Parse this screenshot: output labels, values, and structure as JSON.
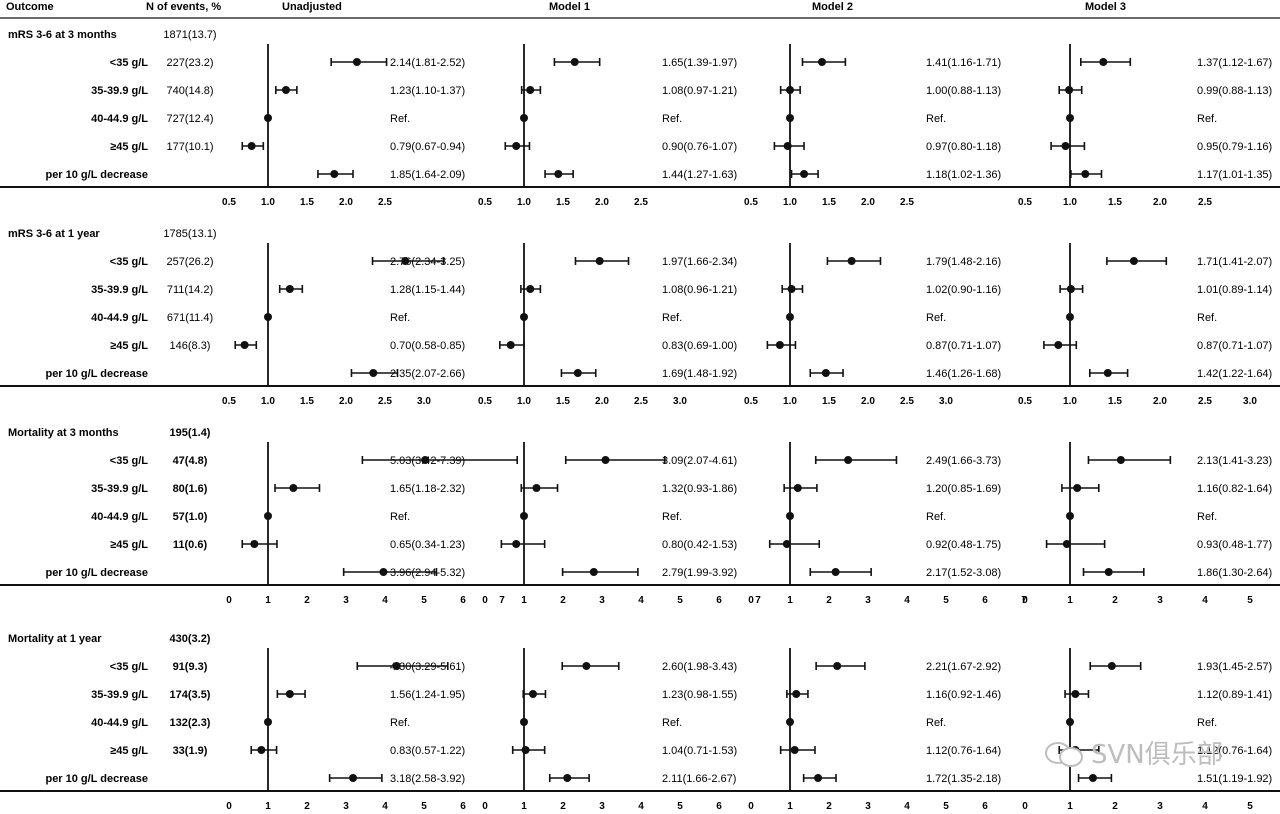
{
  "headers": {
    "outcome": "Outcome",
    "events": "N of events, %",
    "models": [
      "Unadjusted",
      "Model 1",
      "Model 2",
      "Model 3"
    ]
  },
  "ref_label": "Ref.",
  "watermark": "SVN俱乐部",
  "watermark_icon": "wechat-logo-icon",
  "chart_data": {
    "type": "forest",
    "reference_line": 1.0,
    "blocks": [
      {
        "title": "mRS 3-6 at 3 months",
        "total": "1871(13.7)",
        "bold_counts": false,
        "axis": {
          "min": 0.5,
          "max": 2.5,
          "ticks": [
            "0.5",
            "1.0",
            "1.5",
            "2.0",
            "2.5"
          ]
        },
        "rows": [
          {
            "label": "<35 g/L",
            "events": "227(23.2)",
            "est": [
              [
                2.14,
                1.81,
                2.52
              ],
              [
                1.65,
                1.39,
                1.97
              ],
              [
                1.41,
                1.16,
                1.71
              ],
              [
                1.37,
                1.12,
                1.67
              ]
            ],
            "text": [
              "2.14(1.81-2.52)",
              "1.65(1.39-1.97)",
              "1.41(1.16-1.71)",
              "1.37(1.12-1.67)"
            ]
          },
          {
            "label": "35-39.9 g/L",
            "events": "740(14.8)",
            "est": [
              [
                1.23,
                1.1,
                1.37
              ],
              [
                1.08,
                0.97,
                1.21
              ],
              [
                1.0,
                0.88,
                1.13
              ],
              [
                0.99,
                0.88,
                1.13
              ]
            ],
            "text": [
              "1.23(1.10-1.37)",
              "1.08(0.97-1.21)",
              "1.00(0.88-1.13)",
              "0.99(0.88-1.13)"
            ]
          },
          {
            "label": "40-44.9 g/L",
            "events": "727(12.4)",
            "est": [
              [
                1,
                1,
                1
              ],
              [
                1,
                1,
                1
              ],
              [
                1,
                1,
                1
              ],
              [
                1,
                1,
                1
              ]
            ],
            "text": [
              "Ref.",
              "Ref.",
              "Ref.",
              "Ref."
            ]
          },
          {
            "label": "≥45 g/L",
            "events": "177(10.1)",
            "est": [
              [
                0.79,
                0.67,
                0.94
              ],
              [
                0.9,
                0.76,
                1.07
              ],
              [
                0.97,
                0.8,
                1.18
              ],
              [
                0.95,
                0.79,
                1.16
              ]
            ],
            "text": [
              "0.79(0.67-0.94)",
              "0.90(0.76-1.07)",
              "0.97(0.80-1.18)",
              "0.95(0.79-1.16)"
            ]
          },
          {
            "label": "per 10 g/L decrease",
            "events": "",
            "est": [
              [
                1.85,
                1.64,
                2.09
              ],
              [
                1.44,
                1.27,
                1.63
              ],
              [
                1.18,
                1.02,
                1.36
              ],
              [
                1.17,
                1.01,
                1.35
              ]
            ],
            "text": [
              "1.85(1.64-2.09)",
              "1.44(1.27-1.63)",
              "1.18(1.02-1.36)",
              "1.17(1.01-1.35)"
            ]
          }
        ]
      },
      {
        "title": "mRS 3-6 at 1 year",
        "total": "1785(13.1)",
        "bold_counts": false,
        "axis": {
          "min": 0.5,
          "max": 3.0,
          "ticks": [
            "0.5",
            "1.0",
            "1.5",
            "2.0",
            "2.5",
            "3.0"
          ]
        },
        "rows": [
          {
            "label": "<35 g/L",
            "events": "257(26.2)",
            "est": [
              [
                2.76,
                2.34,
                3.25
              ],
              [
                1.97,
                1.66,
                2.34
              ],
              [
                1.79,
                1.48,
                2.16
              ],
              [
                1.71,
                1.41,
                2.07
              ]
            ],
            "text": [
              "2.76(2.34-3.25)",
              "1.97(1.66-2.34)",
              "1.79(1.48-2.16)",
              "1.71(1.41-2.07)"
            ]
          },
          {
            "label": "35-39.9 g/L",
            "events": "711(14.2)",
            "est": [
              [
                1.28,
                1.15,
                1.44
              ],
              [
                1.08,
                0.96,
                1.21
              ],
              [
                1.02,
                0.9,
                1.16
              ],
              [
                1.01,
                0.89,
                1.14
              ]
            ],
            "text": [
              "1.28(1.15-1.44)",
              "1.08(0.96-1.21)",
              "1.02(0.90-1.16)",
              "1.01(0.89-1.14)"
            ]
          },
          {
            "label": "40-44.9 g/L",
            "events": "671(11.4)",
            "est": [
              [
                1,
                1,
                1
              ],
              [
                1,
                1,
                1
              ],
              [
                1,
                1,
                1
              ],
              [
                1,
                1,
                1
              ]
            ],
            "text": [
              "Ref.",
              "Ref.",
              "Ref.",
              "Ref."
            ]
          },
          {
            "label": "≥45 g/L",
            "events": "146(8.3)",
            "est": [
              [
                0.7,
                0.58,
                0.85
              ],
              [
                0.83,
                0.69,
                1.0
              ],
              [
                0.87,
                0.71,
                1.07
              ],
              [
                0.87,
                0.71,
                1.07
              ]
            ],
            "text": [
              "0.70(0.58-0.85)",
              "0.83(0.69-1.00)",
              "0.87(0.71-1.07)",
              "0.87(0.71-1.07)"
            ]
          },
          {
            "label": "per 10 g/L decrease",
            "events": "",
            "est": [
              [
                2.35,
                2.07,
                2.66
              ],
              [
                1.69,
                1.48,
                1.92
              ],
              [
                1.46,
                1.26,
                1.68
              ],
              [
                1.42,
                1.22,
                1.64
              ]
            ],
            "text": [
              "2.35(2.07-2.66)",
              "1.69(1.48-1.92)",
              "1.46(1.26-1.68)",
              "1.42(1.22-1.64)"
            ]
          }
        ]
      },
      {
        "title": "Mortality at 3 months",
        "total": "195(1.4)",
        "bold_counts": true,
        "axis": {
          "min": 0,
          "max": 7,
          "ticks": [
            "0",
            "1",
            "2",
            "3",
            "4",
            "5",
            "6",
            "7"
          ]
        },
        "rows": [
          {
            "label": "<35 g/L",
            "events": "47(4.8)",
            "est": [
              [
                5.03,
                3.42,
                7.39
              ],
              [
                3.09,
                2.07,
                4.61
              ],
              [
                2.49,
                1.66,
                3.73
              ],
              [
                2.13,
                1.41,
                3.23
              ]
            ],
            "text": [
              "5.03(3.42-7.39)",
              "3.09(2.07-4.61)",
              "2.49(1.66-3.73)",
              "2.13(1.41-3.23)"
            ]
          },
          {
            "label": "35-39.9 g/L",
            "events": "80(1.6)",
            "est": [
              [
                1.65,
                1.18,
                2.32
              ],
              [
                1.32,
                0.93,
                1.86
              ],
              [
                1.2,
                0.85,
                1.69
              ],
              [
                1.16,
                0.82,
                1.64
              ]
            ],
            "text": [
              "1.65(1.18-2.32)",
              "1.32(0.93-1.86)",
              "1.20(0.85-1.69)",
              "1.16(0.82-1.64)"
            ]
          },
          {
            "label": "40-44.9 g/L",
            "events": "57(1.0)",
            "est": [
              [
                1,
                1,
                1
              ],
              [
                1,
                1,
                1
              ],
              [
                1,
                1,
                1
              ],
              [
                1,
                1,
                1
              ]
            ],
            "text": [
              "Ref.",
              "Ref.",
              "Ref.",
              "Ref."
            ]
          },
          {
            "label": "≥45 g/L",
            "events": "11(0.6)",
            "est": [
              [
                0.65,
                0.34,
                1.23
              ],
              [
                0.8,
                0.42,
                1.53
              ],
              [
                0.92,
                0.48,
                1.75
              ],
              [
                0.93,
                0.48,
                1.77
              ]
            ],
            "text": [
              "0.65(0.34-1.23)",
              "0.80(0.42-1.53)",
              "0.92(0.48-1.75)",
              "0.93(0.48-1.77)"
            ]
          },
          {
            "label": "per 10 g/L decrease",
            "events": "",
            "est": [
              [
                3.96,
                2.94,
                5.32
              ],
              [
                2.79,
                1.99,
                3.92
              ],
              [
                2.17,
                1.52,
                3.08
              ],
              [
                1.86,
                1.3,
                2.64
              ]
            ],
            "text": [
              "3.96(2.94-5.32)",
              "2.79(1.99-3.92)",
              "2.17(1.52-3.08)",
              "1.86(1.30-2.64)"
            ]
          }
        ]
      },
      {
        "title": "Mortality at 1 year",
        "total": "430(3.2)",
        "bold_counts": true,
        "axis": {
          "min": 0,
          "max": 6,
          "ticks": [
            "0",
            "1",
            "2",
            "3",
            "4",
            "5",
            "6"
          ]
        },
        "rows": [
          {
            "label": "<35 g/L",
            "events": "91(9.3)",
            "est": [
              [
                4.3,
                3.29,
                5.61
              ],
              [
                2.6,
                1.98,
                3.43
              ],
              [
                2.21,
                1.67,
                2.92
              ],
              [
                1.93,
                1.45,
                2.57
              ]
            ],
            "text": [
              "4.30(3.29-5.61)",
              "2.60(1.98-3.43)",
              "2.21(1.67-2.92)",
              "1.93(1.45-2.57)"
            ]
          },
          {
            "label": "35-39.9 g/L",
            "events": "174(3.5)",
            "est": [
              [
                1.56,
                1.24,
                1.95
              ],
              [
                1.23,
                0.98,
                1.55
              ],
              [
                1.16,
                0.92,
                1.46
              ],
              [
                1.12,
                0.89,
                1.41
              ]
            ],
            "text": [
              "1.56(1.24-1.95)",
              "1.23(0.98-1.55)",
              "1.16(0.92-1.46)",
              "1.12(0.89-1.41)"
            ]
          },
          {
            "label": "40-44.9 g/L",
            "events": "132(2.3)",
            "est": [
              [
                1,
                1,
                1
              ],
              [
                1,
                1,
                1
              ],
              [
                1,
                1,
                1
              ],
              [
                1,
                1,
                1
              ]
            ],
            "text": [
              "Ref.",
              "Ref.",
              "Ref.",
              "Ref."
            ]
          },
          {
            "label": "≥45 g/L",
            "events": "33(1.9)",
            "est": [
              [
                0.83,
                0.57,
                1.22
              ],
              [
                1.04,
                0.71,
                1.53
              ],
              [
                1.12,
                0.76,
                1.64
              ],
              [
                1.12,
                0.76,
                1.64
              ]
            ],
            "text": [
              "0.83(0.57-1.22)",
              "1.04(0.71-1.53)",
              "1.12(0.76-1.64)",
              "1.12(0.76-1.64)"
            ]
          },
          {
            "label": "per 10 g/L decrease",
            "events": "",
            "est": [
              [
                3.18,
                2.58,
                3.92
              ],
              [
                2.11,
                1.66,
                2.67
              ],
              [
                1.72,
                1.35,
                2.18
              ],
              [
                1.51,
                1.19,
                1.92
              ]
            ],
            "text": [
              "3.18(2.58-3.92)",
              "2.11(1.66-2.67)",
              "1.72(1.35-2.18)",
              "1.51(1.19-1.92)"
            ]
          }
        ]
      }
    ]
  }
}
